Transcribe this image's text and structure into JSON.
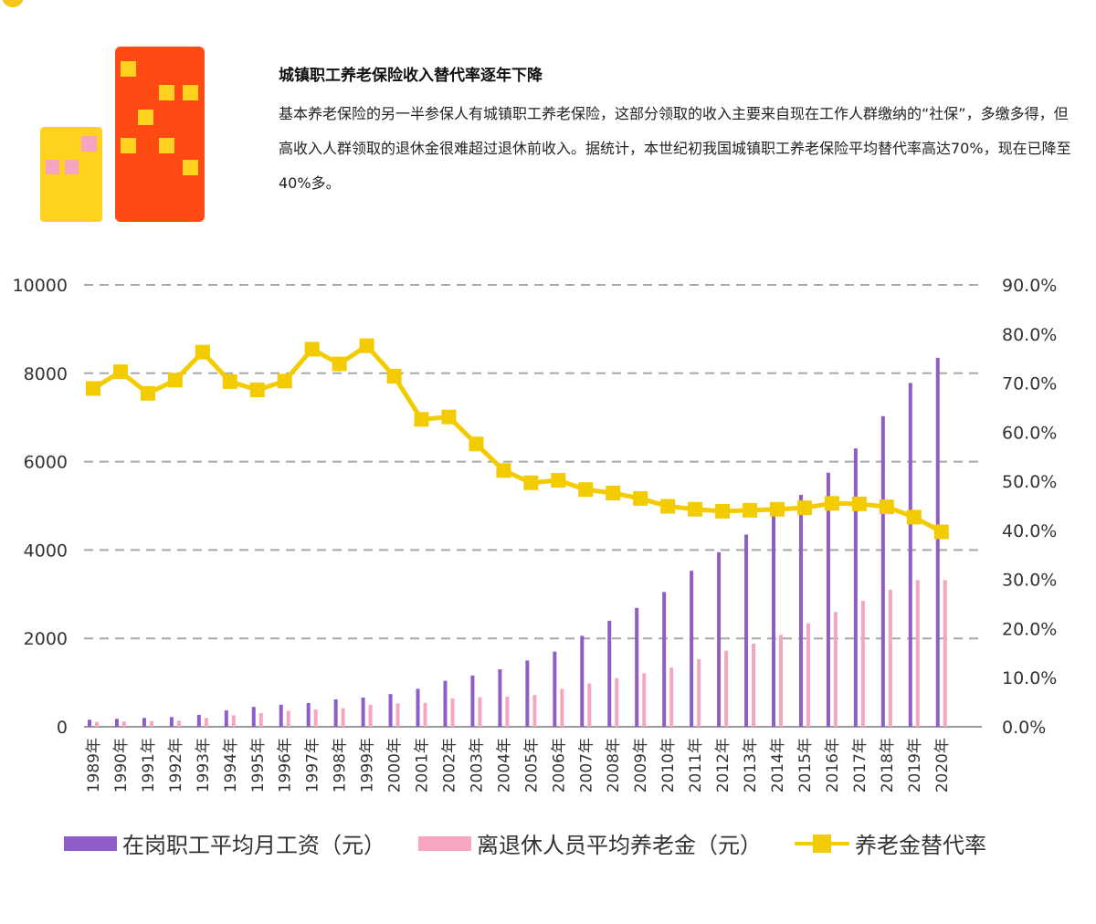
{
  "article": {
    "heading": "城镇职工养老保险收入替代率逐年下降",
    "body": "基本养老保险的另一半参保人有城镇职工养老保险，这部分领取的收入主要来自现在工作人群缴纳的“社保”，多缴多得，但高收入人群领取的退休金很难超过退休前收入。据统计，本世纪初我国城镇职工养老保险平均替代率高达70%，现在已降至40%多。"
  },
  "colors": {
    "wage": "#8e5dc7",
    "pension": "#f7a6c2",
    "rate": "#f2cc00",
    "grid": "#a8a8a8",
    "building_red": "#ff4a14",
    "building_yellow": "#ffd21f",
    "window_pink": "#f6a4c0"
  },
  "chart_data": {
    "type": "bar+line",
    "categories": [
      "1989年",
      "1990年",
      "1991年",
      "1992年",
      "1993年",
      "1994年",
      "1995年",
      "1996年",
      "1997年",
      "1998年",
      "1999年",
      "2000年",
      "2001年",
      "2002年",
      "2003年",
      "2004年",
      "2005年",
      "2006年",
      "2007年",
      "2008年",
      "2009年",
      "2010年",
      "2011年",
      "2012年",
      "2013年",
      "2014年",
      "2015年",
      "2016年",
      "2017年",
      "2018年",
      "2019年",
      "2020年"
    ],
    "series": [
      {
        "name": "在岗职工平均月工资（元）",
        "type": "bar",
        "axis": "left",
        "values": [
          160,
          180,
          200,
          220,
          270,
          370,
          450,
          500,
          540,
          620,
          660,
          740,
          860,
          1040,
          1160,
          1300,
          1500,
          1700,
          2060,
          2400,
          2690,
          3050,
          3530,
          3950,
          4350,
          4850,
          5250,
          5750,
          6300,
          7030,
          7780,
          8350
        ]
      },
      {
        "name": "离退休人员平均养老金（元）",
        "type": "bar",
        "axis": "left",
        "values": [
          110,
          120,
          130,
          140,
          200,
          260,
          310,
          360,
          390,
          420,
          500,
          530,
          540,
          640,
          670,
          680,
          720,
          860,
          980,
          1100,
          1210,
          1340,
          1530,
          1720,
          1880,
          2080,
          2340,
          2600,
          2850,
          3100,
          3320,
          3320
        ]
      },
      {
        "name": "养老金替代率",
        "type": "line",
        "axis": "right",
        "values": [
          68.9,
          72.3,
          67.9,
          70.6,
          76.3,
          70.3,
          68.6,
          70.4,
          76.9,
          73.9,
          77.6,
          71.4,
          62.6,
          63.1,
          57.6,
          52.2,
          49.7,
          50.2,
          48.3,
          47.6,
          46.5,
          44.9,
          44.3,
          43.9,
          44.1,
          44.3,
          44.6,
          45.5,
          45.4,
          44.8,
          42.7,
          39.7
        ]
      }
    ],
    "left_axis": {
      "min": 0,
      "max": 10000,
      "ticks": [
        "0",
        "2000",
        "4000",
        "6000",
        "8000",
        "10000"
      ]
    },
    "right_axis": {
      "min": 0,
      "max": 90,
      "ticks": [
        "0.0%",
        "10.0%",
        "20.0%",
        "30.0%",
        "40.0%",
        "50.0%",
        "60.0%",
        "70.0%",
        "80.0%",
        "90.0%"
      ]
    },
    "grid": "dashed-horizontal",
    "legend_position": "bottom"
  }
}
